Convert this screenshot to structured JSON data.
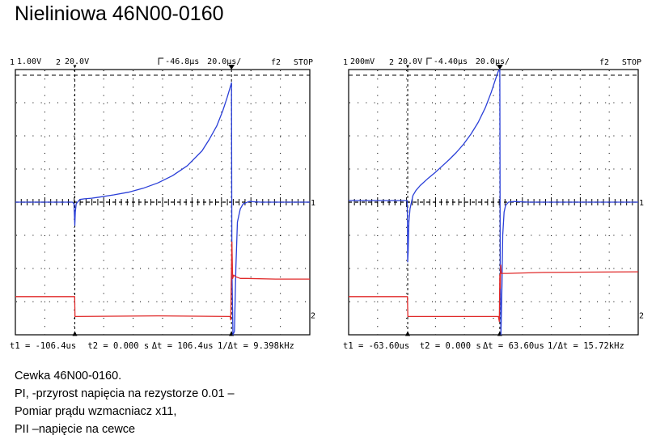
{
  "page": {
    "title": "Nieliniowa 46N00-0160",
    "caption": [
      "Cewka 46N00-0160.",
      "PI, -przyrost napięcia na rezystorze 0.01 –",
      "Pomiar prądu wzmacniacz x11,",
      "PII –napięcie na cewce"
    ]
  },
  "colors": {
    "ch1": "#2a3fd8",
    "ch2": "#e02a2a",
    "grid": "#000000",
    "background": "#ffffff"
  },
  "chart_data": [
    {
      "type": "line",
      "header": {
        "ch1_num": "1",
        "ch1_scale": "1.00V",
        "ch2_num": "2",
        "ch2_scale": "20.0V",
        "trig_pos": "-46.8µs",
        "timebase": "20.0µs/",
        "trig_src": "f2",
        "state": "STOP"
      },
      "footer": {
        "t1": "t1 = -106.4us",
        "t2": "t2 = 0.000 s",
        "dt": "Δt = 106.4us",
        "freq": "1/Δt = 9.398kHz"
      },
      "x_unit": "µs",
      "xlim": [
        -146.8,
        53.2
      ],
      "ylim": [
        -4,
        4
      ],
      "cursors_us": [
        -106.4,
        0
      ],
      "series": [
        {
          "channel": "1",
          "x": [
            -146.8,
            -108,
            -107,
            -106.8,
            -106.4,
            -106.1,
            -105.5,
            -103,
            -100,
            -95,
            -90,
            -80,
            -70,
            -60,
            -50,
            -40,
            -30,
            -20,
            -15,
            -10,
            -6,
            -3,
            -1,
            0,
            0.3,
            1,
            2,
            3,
            4,
            6,
            8,
            12,
            20,
            30,
            53.2
          ],
          "y": [
            0,
            0,
            -0.05,
            -0.25,
            -0.7,
            -0.3,
            -0.05,
            0.08,
            0.1,
            0.12,
            0.15,
            0.22,
            0.3,
            0.42,
            0.58,
            0.8,
            1.1,
            1.55,
            1.9,
            2.3,
            2.75,
            3.15,
            3.45,
            3.6,
            -2,
            -4,
            -3.9,
            -2,
            -0.6,
            -0.2,
            -0.05,
            0.02,
            0,
            0,
            0
          ]
        },
        {
          "channel": "2",
          "x": [
            -146.8,
            -106.5,
            -106.3,
            -50,
            -1,
            -0.5,
            -0.2,
            0,
            0.3,
            0.8,
            1.5,
            3,
            6,
            10,
            30,
            53.2
          ],
          "y": [
            -2.85,
            -2.85,
            -3.45,
            -3.43,
            -3.45,
            -3.55,
            -2.5,
            -2.0,
            -1.2,
            -2.3,
            -2.2,
            -2.25,
            -2.3,
            -2.3,
            -2.32,
            -2.32
          ]
        }
      ]
    },
    {
      "type": "line",
      "header": {
        "ch1_num": "1",
        "ch1_scale": "200mV",
        "ch2_num": "2",
        "ch2_scale": "20.0V",
        "trig_pos": "-4.40µs",
        "timebase": "20.0µs/",
        "trig_src": "f2",
        "state": "STOP"
      },
      "footer": {
        "t1": "t1 = -63.60us",
        "t2": "t2 = 0.000 s",
        "dt": "Δt = 63.60us",
        "freq": "1/Δt = 15.72kHz"
      },
      "x_unit": "µs",
      "xlim": [
        -104.4,
        95.6
      ],
      "ylim": [
        -4,
        4
      ],
      "cursors_us": [
        -63.6,
        0
      ],
      "series": [
        {
          "channel": "1",
          "x": [
            -104.4,
            -64,
            -63.8,
            -63.6,
            -63.3,
            -62.8,
            -62,
            -61,
            -60,
            -58,
            -55,
            -50,
            -45,
            -40,
            -35,
            -30,
            -25,
            -20,
            -15,
            -10,
            -6,
            -3,
            -1,
            0,
            0.3,
            0.8,
            1.5,
            2,
            3,
            4,
            6,
            10,
            20,
            95.6
          ],
          "y": [
            0.05,
            0.05,
            -0.5,
            -1.8,
            -1.5,
            -0.6,
            -0.2,
            0,
            0.2,
            0.35,
            0.5,
            0.7,
            0.88,
            1.08,
            1.28,
            1.5,
            1.75,
            2.05,
            2.4,
            2.85,
            3.3,
            3.7,
            3.95,
            4.0,
            -2,
            -4,
            -2.5,
            -1.0,
            -0.3,
            -0.1,
            0,
            0.02,
            0,
            0
          ]
        },
        {
          "channel": "2",
          "x": [
            -104.4,
            -63.8,
            -63.5,
            -30,
            -1,
            -0.3,
            0,
            0.3,
            0.6,
            1,
            2,
            5,
            30,
            95.6
          ],
          "y": [
            -2.85,
            -2.85,
            -3.45,
            -3.45,
            -3.45,
            -3.6,
            -2.2,
            -2.6,
            -1.9,
            -2.15,
            -2.15,
            -2.15,
            -2.12,
            -2.1
          ]
        }
      ]
    }
  ]
}
